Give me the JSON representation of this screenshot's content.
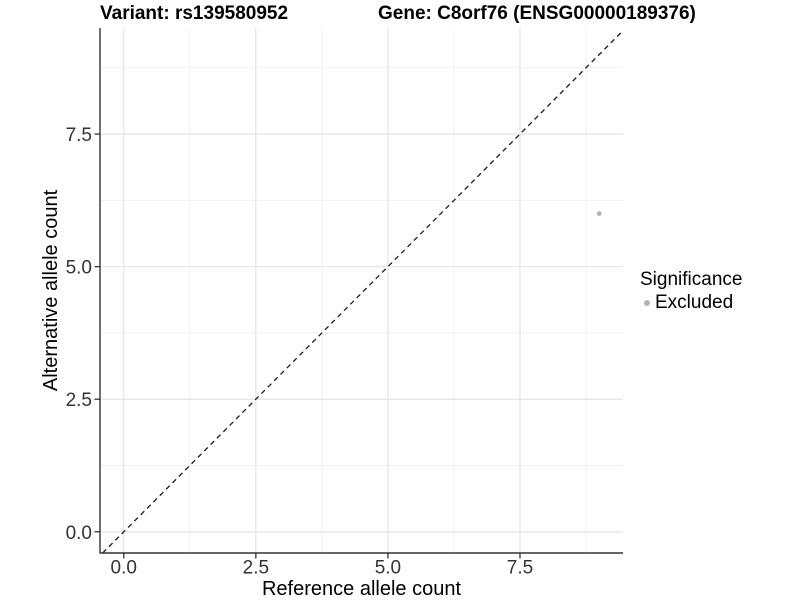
{
  "header": {
    "variant_title": "Variant: rs139580952",
    "gene_title": "Gene: C8orf76 (ENSG00000189376)"
  },
  "chart_data": {
    "type": "scatter",
    "titles": [
      "Variant: rs139580952",
      "Gene: C8orf76 (ENSG00000189376)"
    ],
    "xlabel": "Reference allele count",
    "ylabel": "Alternative allele count",
    "xlim": [
      -0.45,
      9.45
    ],
    "ylim": [
      -0.4,
      9.5
    ],
    "xticks": [
      0.0,
      2.5,
      5.0,
      7.5
    ],
    "xtick_labels": [
      "0.0",
      "2.5",
      "5.0",
      "7.5"
    ],
    "yticks": [
      0.0,
      2.5,
      5.0,
      7.5
    ],
    "ytick_labels": [
      "0.0",
      "2.5",
      "5.0",
      "7.5"
    ],
    "grid": {
      "major_color": "#e2e2e2",
      "minor_color": "#efefef",
      "minor_step_fraction": 0.5
    },
    "axis_color": "#333333",
    "tick_label_color": "#333333",
    "reference_line": {
      "type": "identity",
      "style": "dashed",
      "color": "#1a1a1a"
    },
    "series": [
      {
        "name": "Excluded",
        "color": "#b3b3b3",
        "points": [
          {
            "x": 9.0,
            "y": 6.0
          }
        ]
      }
    ],
    "legend": {
      "title": "Significance",
      "position": "right",
      "items": [
        {
          "label": "Excluded",
          "color": "#b3b3b3"
        }
      ]
    }
  }
}
